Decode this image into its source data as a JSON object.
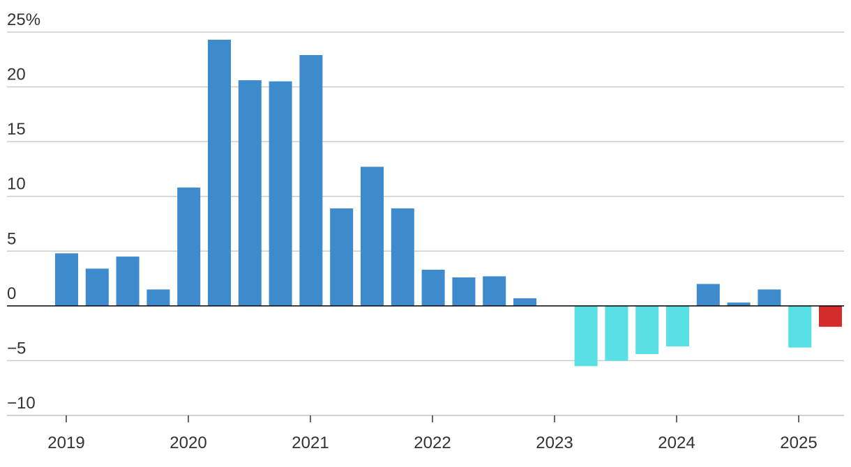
{
  "chart_data": {
    "type": "bar",
    "title": "",
    "xlabel": "",
    "ylabel": "",
    "ylim": [
      -10,
      25
    ],
    "y_ticks": [
      {
        "value": 25,
        "label": "25%"
      },
      {
        "value": 20,
        "label": "20"
      },
      {
        "value": 15,
        "label": "15"
      },
      {
        "value": 10,
        "label": "10"
      },
      {
        "value": 5,
        "label": "5"
      },
      {
        "value": 0,
        "label": "0"
      },
      {
        "value": -5,
        "label": "−5"
      },
      {
        "value": -10,
        "label": "−10"
      }
    ],
    "x_ticks": [
      "2019",
      "2020",
      "2021",
      "2022",
      "2023",
      "2024",
      "2025"
    ],
    "grid": true,
    "colors": {
      "positive": "#3d8bcc",
      "negative": "#58e0e5",
      "latest": "#d42b2b",
      "grid": "#cccccc",
      "zero_line": "#000000",
      "text": "#333333"
    },
    "values": [
      4.8,
      3.4,
      4.5,
      1.5,
      10.8,
      24.3,
      20.6,
      20.5,
      22.9,
      8.9,
      12.7,
      8.9,
      3.3,
      2.6,
      2.7,
      0.7,
      0,
      -5.5,
      -5.0,
      -4.4,
      -3.7,
      2.0,
      0.3,
      1.5,
      -3.8,
      -1.9
    ],
    "bar_color_role": [
      "positive",
      "positive",
      "positive",
      "positive",
      "positive",
      "positive",
      "positive",
      "positive",
      "positive",
      "positive",
      "positive",
      "positive",
      "positive",
      "positive",
      "positive",
      "positive",
      "positive",
      "negative",
      "negative",
      "negative",
      "negative",
      "positive",
      "positive",
      "positive",
      "negative",
      "latest"
    ]
  }
}
